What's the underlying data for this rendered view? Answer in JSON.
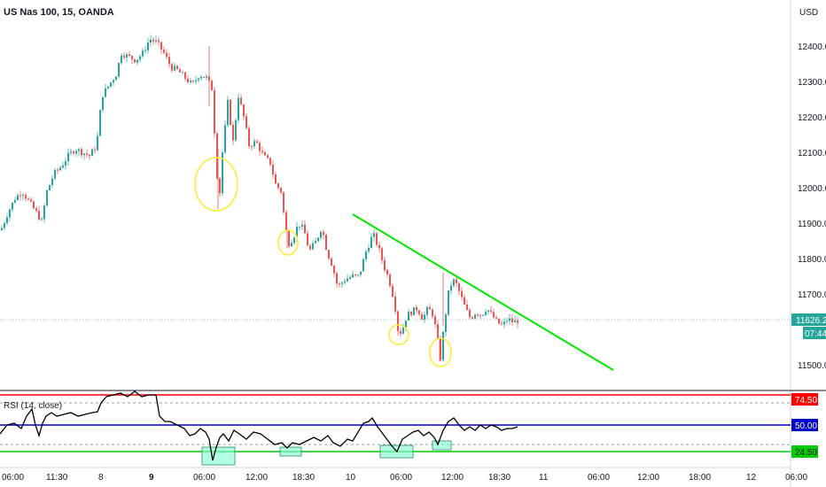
{
  "header": {
    "title": "US Nas 100, 15, OANDA",
    "currency": "USD"
  },
  "colors": {
    "up": "#26a69a",
    "down": "#ef5350",
    "trendline": "#00e600",
    "circle": "#ffeb3b",
    "rsi_line": "#000000",
    "rsi_upper": "#ff0000",
    "rsi_mid": "#0000cc",
    "rsi_lower": "#00cc00",
    "rsi_box": "#7fffd4",
    "price_tag": "#26a69a",
    "timer_tag": "#26a69a"
  },
  "price_axis": {
    "ticks": [
      "12400.0",
      "12300.0",
      "12200.0",
      "12100.0",
      "12000.0",
      "11900.0",
      "11800.0",
      "11700.0",
      "11500.0"
    ],
    "current_price": "11626.2",
    "countdown": "07:44"
  },
  "rsi": {
    "label": "RSI (14, close)",
    "upper": "74.50",
    "mid": "50.00",
    "lower": "24.50"
  },
  "time_axis": {
    "ticks": [
      "06:00",
      "11:30",
      "8",
      "9",
      "06:00",
      "12:00",
      "18:30",
      "10",
      "06:00",
      "12:00",
      "18:30",
      "11",
      "06:00",
      "12:00",
      "18:00",
      "12",
      "06:00"
    ]
  },
  "chart_data": {
    "type": "candlestick",
    "title": "US Nas 100, 15, OANDA",
    "ylim": [
      11450,
      12480
    ],
    "price_path": [
      [
        0,
        11880
      ],
      [
        8,
        11930
      ],
      [
        16,
        11970
      ],
      [
        24,
        11990
      ],
      [
        32,
        11960
      ],
      [
        40,
        11930
      ],
      [
        46,
        11905
      ],
      [
        52,
        11990
      ],
      [
        60,
        12040
      ],
      [
        68,
        12060
      ],
      [
        76,
        12090
      ],
      [
        84,
        12110
      ],
      [
        92,
        12100
      ],
      [
        100,
        12090
      ],
      [
        108,
        12120
      ],
      [
        114,
        12260
      ],
      [
        122,
        12290
      ],
      [
        130,
        12320
      ],
      [
        136,
        12380
      ],
      [
        144,
        12370
      ],
      [
        152,
        12360
      ],
      [
        160,
        12380
      ],
      [
        168,
        12420
      ],
      [
        176,
        12410
      ],
      [
        184,
        12380
      ],
      [
        192,
        12340
      ],
      [
        200,
        12330
      ],
      [
        208,
        12310
      ],
      [
        216,
        12290
      ],
      [
        224,
        12320
      ],
      [
        232,
        12310
      ],
      [
        238,
        12280
      ],
      [
        242,
        12120
      ],
      [
        246,
        11950
      ],
      [
        250,
        12100
      ],
      [
        256,
        12240
      ],
      [
        262,
        12130
      ],
      [
        268,
        12260
      ],
      [
        274,
        12200
      ],
      [
        280,
        12120
      ],
      [
        288,
        12130
      ],
      [
        296,
        12090
      ],
      [
        304,
        12070
      ],
      [
        310,
        12010
      ],
      [
        316,
        11990
      ],
      [
        320,
        11910
      ],
      [
        324,
        11840
      ],
      [
        330,
        11860
      ],
      [
        336,
        11900
      ],
      [
        342,
        11880
      ],
      [
        348,
        11820
      ],
      [
        356,
        11850
      ],
      [
        362,
        11890
      ],
      [
        368,
        11820
      ],
      [
        374,
        11780
      ],
      [
        380,
        11720
      ],
      [
        388,
        11740
      ],
      [
        396,
        11750
      ],
      [
        404,
        11750
      ],
      [
        412,
        11820
      ],
      [
        420,
        11870
      ],
      [
        426,
        11830
      ],
      [
        432,
        11780
      ],
      [
        438,
        11740
      ],
      [
        444,
        11680
      ],
      [
        448,
        11600
      ],
      [
        452,
        11590
      ],
      [
        458,
        11640
      ],
      [
        464,
        11650
      ],
      [
        470,
        11660
      ],
      [
        476,
        11630
      ],
      [
        482,
        11660
      ],
      [
        488,
        11640
      ],
      [
        492,
        11580
      ],
      [
        496,
        11520
      ],
      [
        500,
        11610
      ],
      [
        506,
        11720
      ],
      [
        512,
        11740
      ],
      [
        518,
        11700
      ],
      [
        524,
        11660
      ],
      [
        530,
        11630
      ],
      [
        536,
        11650
      ],
      [
        542,
        11640
      ],
      [
        548,
        11660
      ],
      [
        554,
        11640
      ],
      [
        560,
        11620
      ],
      [
        566,
        11610
      ],
      [
        572,
        11630
      ],
      [
        578,
        11620
      ],
      [
        584,
        11626
      ]
    ],
    "trendline": [
      [
        398,
        242
      ],
      [
        692,
        418
      ]
    ],
    "circles": [
      {
        "cx": 244,
        "cy": 208,
        "rx": 24,
        "ry": 30
      },
      {
        "cx": 325,
        "cy": 274,
        "rx": 11,
        "ry": 14
      },
      {
        "cx": 450,
        "cy": 378,
        "rx": 11,
        "ry": 11
      },
      {
        "cx": 497,
        "cy": 398,
        "rx": 12,
        "ry": 16
      }
    ],
    "rsi_series": [
      [
        0,
        490
      ],
      [
        8,
        480
      ],
      [
        16,
        478
      ],
      [
        24,
        484
      ],
      [
        30,
        470
      ],
      [
        36,
        462
      ],
      [
        40,
        480
      ],
      [
        44,
        492
      ],
      [
        48,
        478
      ],
      [
        52,
        470
      ],
      [
        58,
        466
      ],
      [
        64,
        470
      ],
      [
        72,
        468
      ],
      [
        80,
        466
      ],
      [
        88,
        470
      ],
      [
        96,
        468
      ],
      [
        104,
        466
      ],
      [
        110,
        465
      ],
      [
        114,
        455
      ],
      [
        120,
        448
      ],
      [
        128,
        446
      ],
      [
        136,
        444
      ],
      [
        144,
        448
      ],
      [
        152,
        442
      ],
      [
        160,
        448
      ],
      [
        168,
        446
      ],
      [
        176,
        446
      ],
      [
        180,
        470
      ],
      [
        186,
        476
      ],
      [
        192,
        476
      ],
      [
        200,
        480
      ],
      [
        208,
        484
      ],
      [
        214,
        492
      ],
      [
        220,
        490
      ],
      [
        226,
        484
      ],
      [
        232,
        488
      ],
      [
        236,
        496
      ],
      [
        240,
        520
      ],
      [
        244,
        505
      ],
      [
        248,
        494
      ],
      [
        252,
        490
      ],
      [
        258,
        498
      ],
      [
        264,
        486
      ],
      [
        270,
        490
      ],
      [
        278,
        496
      ],
      [
        286,
        488
      ],
      [
        294,
        490
      ],
      [
        302,
        496
      ],
      [
        310,
        502
      ],
      [
        318,
        500
      ],
      [
        324,
        506
      ],
      [
        330,
        500
      ],
      [
        338,
        502
      ],
      [
        346,
        498
      ],
      [
        354,
        494
      ],
      [
        362,
        498
      ],
      [
        370,
        492
      ],
      [
        376,
        500
      ],
      [
        384,
        504
      ],
      [
        392,
        496
      ],
      [
        398,
        498
      ],
      [
        404,
        488
      ],
      [
        410,
        478
      ],
      [
        416,
        476
      ],
      [
        420,
        472
      ],
      [
        426,
        482
      ],
      [
        432,
        490
      ],
      [
        438,
        498
      ],
      [
        444,
        506
      ],
      [
        448,
        510
      ],
      [
        454,
        496
      ],
      [
        460,
        492
      ],
      [
        466,
        488
      ],
      [
        472,
        486
      ],
      [
        478,
        492
      ],
      [
        484,
        488
      ],
      [
        490,
        494
      ],
      [
        494,
        502
      ],
      [
        500,
        486
      ],
      [
        506,
        476
      ],
      [
        512,
        472
      ],
      [
        518,
        480
      ],
      [
        524,
        486
      ],
      [
        530,
        482
      ],
      [
        536,
        486
      ],
      [
        542,
        480
      ],
      [
        548,
        484
      ],
      [
        554,
        480
      ],
      [
        560,
        482
      ],
      [
        566,
        486
      ],
      [
        572,
        484
      ],
      [
        578,
        484
      ],
      [
        584,
        482
      ]
    ],
    "rsi_boxes": [
      {
        "x": 228,
        "y": 505,
        "w": 37,
        "h": 20
      },
      {
        "x": 316,
        "y": 505,
        "w": 24,
        "h": 10
      },
      {
        "x": 429,
        "y": 503,
        "w": 37,
        "h": 14
      },
      {
        "x": 488,
        "y": 498,
        "w": 21,
        "h": 10
      }
    ]
  }
}
